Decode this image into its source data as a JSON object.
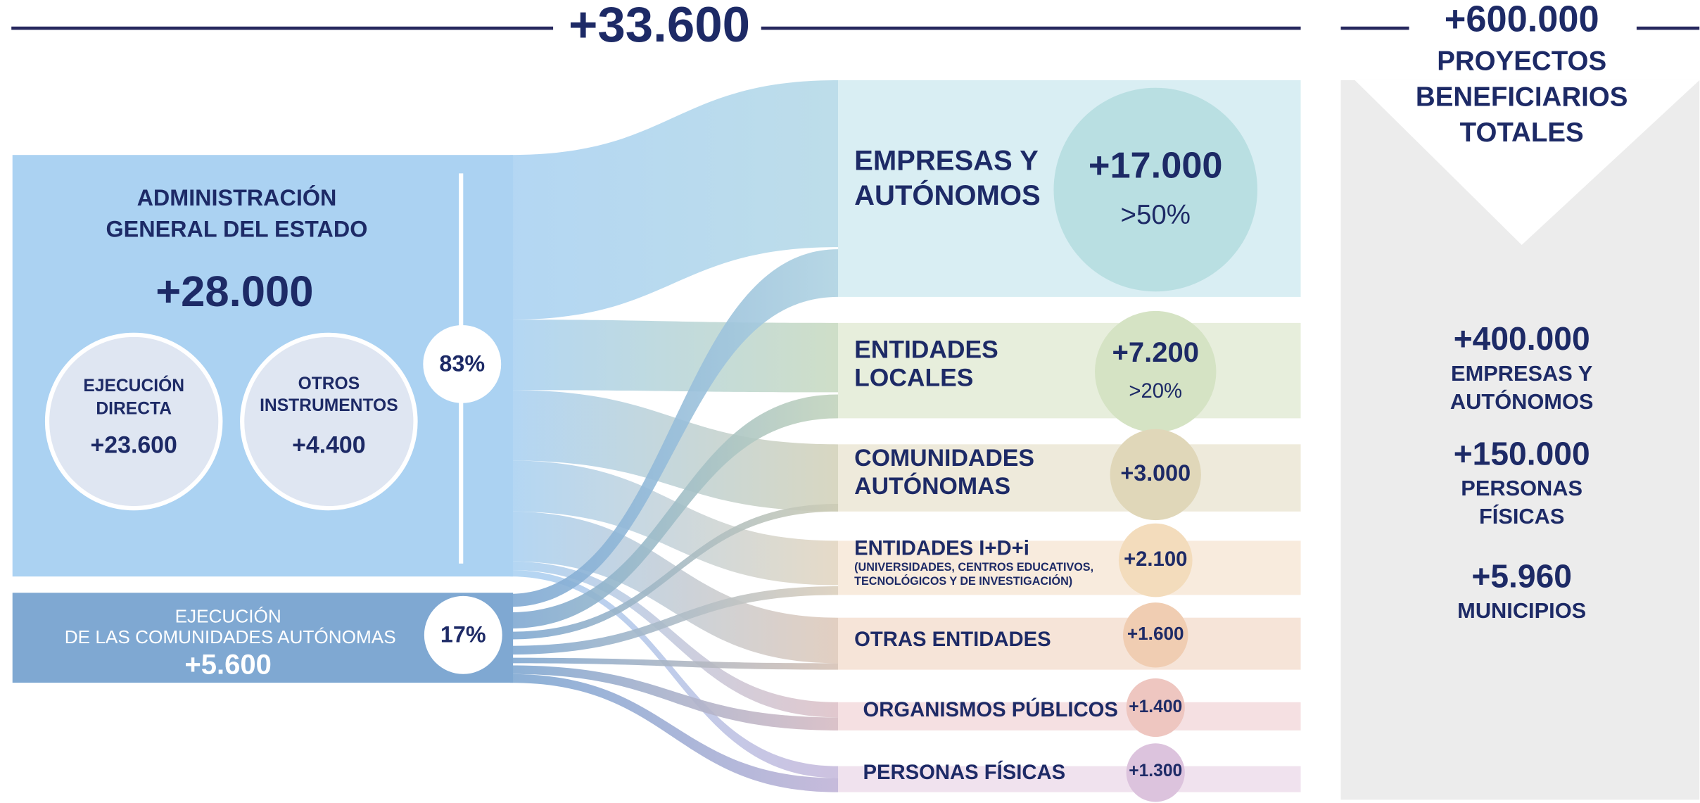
{
  "header": {
    "total": "+33.600"
  },
  "sources": {
    "age": {
      "title_lines": [
        "ADMINISTRACIÓN",
        "GENERAL DEL ESTADO"
      ],
      "value": "+28.000",
      "share": "83%",
      "parts": [
        {
          "label_lines": [
            "EJECUCIÓN",
            "DIRECTA"
          ],
          "value": "+23.600"
        },
        {
          "label_lines": [
            "OTROS",
            "INSTRUMENTOS"
          ],
          "value": "+4.400"
        }
      ]
    },
    "ccaa": {
      "label_lines": [
        "EJECUCIÓN",
        "DE LAS COMUNIDADES AUTÓNOMAS"
      ],
      "value": "+5.600",
      "share": "17%"
    }
  },
  "destinations": [
    {
      "name_lines": [
        "EMPRESAS Y",
        "AUTÓNOMOS"
      ],
      "value": "+17.000",
      "share": ">50%"
    },
    {
      "name_lines": [
        "ENTIDADES",
        "LOCALES"
      ],
      "value": "+7.200",
      "share": ">20%"
    },
    {
      "name_lines": [
        "COMUNIDADES",
        "AUTÓNOMAS"
      ],
      "value": "+3.000"
    },
    {
      "name_lines": [
        "ENTIDADES  I+D+i"
      ],
      "note_lines": [
        "(UNIVERSIDADES, CENTROS EDUCATIVOS,",
        "TECNOLÓGICOS Y DE INVESTIGACIÓN)"
      ],
      "value": "+2.100"
    },
    {
      "name_lines": [
        "OTRAS ENTIDADES"
      ],
      "value": "+1.600"
    },
    {
      "name_lines": [
        "ORGANISMOS PÚBLICOS"
      ],
      "value": "+1.400"
    },
    {
      "name_lines": [
        "PERSONAS FÍSICAS"
      ],
      "value": "+1.300"
    }
  ],
  "beneficiaries": {
    "total": "+600.000",
    "label_lines": [
      "PROYECTOS",
      "BENEFICIARIOS",
      "TOTALES"
    ],
    "items": [
      {
        "value": "+400.000",
        "label_lines": [
          "EMPRESAS Y",
          "AUTÓNOMOS"
        ]
      },
      {
        "value": "+150.000",
        "label_lines": [
          "PERSONAS",
          "FÍSICAS"
        ]
      },
      {
        "value": "+5.960",
        "label_lines": [
          "MUNICIPIOS"
        ]
      }
    ]
  }
}
